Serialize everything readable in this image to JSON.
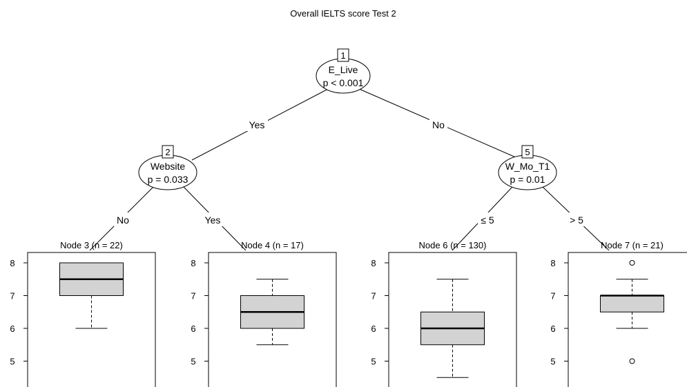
{
  "title": "Overall IELTS score Test 2",
  "inner_nodes": [
    {
      "id": "1",
      "variable": "E_Live",
      "pvalue": "p < 0.001"
    },
    {
      "id": "2",
      "variable": "Website",
      "pvalue": "p = 0.033"
    },
    {
      "id": "5",
      "variable": "W_Mo_T1",
      "pvalue": "p = 0.01"
    }
  ],
  "edge_labels": {
    "n1_left": "Yes",
    "n1_right": "No",
    "n2_left": "No",
    "n2_right": "Yes",
    "n5_left": "≤ 5",
    "n5_right": "> 5"
  },
  "terminal_nodes": [
    {
      "label": "Node 3 (n = 22)",
      "min": 6,
      "q1": 7,
      "median": 7.5,
      "q3": 8,
      "max": 8,
      "outliers": []
    },
    {
      "label": "Node 4 (n = 17)",
      "min": 5.5,
      "q1": 6,
      "median": 6.5,
      "q3": 7,
      "max": 7.5,
      "outliers": []
    },
    {
      "label": "Node 6 (n = 130)",
      "min": 4.5,
      "q1": 5.5,
      "median": 6,
      "q3": 6.5,
      "max": 7.5,
      "outliers": []
    },
    {
      "label": "Node 7 (n = 21)",
      "min": 6,
      "q1": 6.5,
      "median": 7,
      "q3": 7,
      "max": 7.5,
      "outliers": [
        8,
        5
      ]
    }
  ],
  "y_ticks": [
    "8",
    "7",
    "6",
    "5"
  ],
  "colors": {
    "box_fill": "#d3d3d3",
    "line": "#000000"
  }
}
